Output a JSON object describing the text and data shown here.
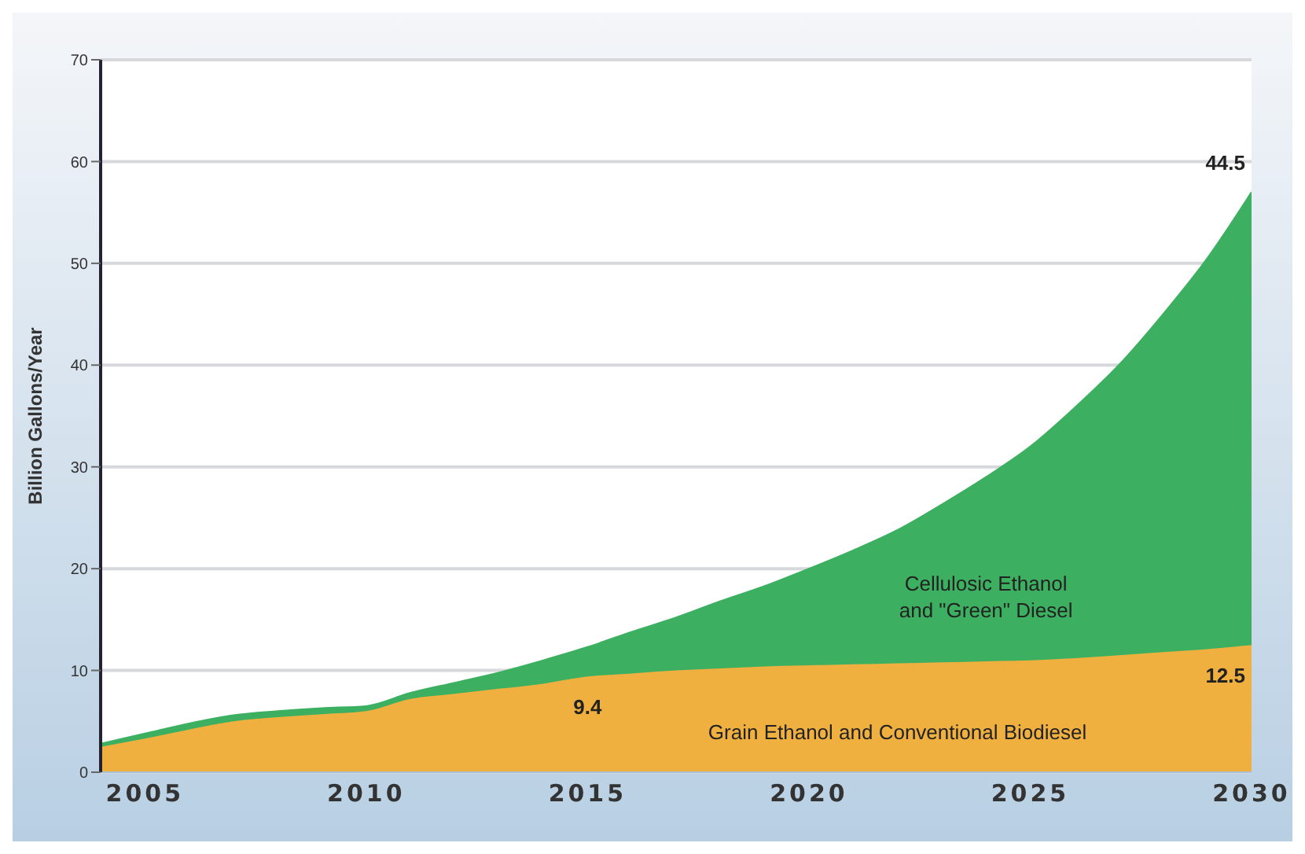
{
  "chart_data": {
    "type": "area",
    "stacked": true,
    "ylabel": "Billion Gallons/Year",
    "x": [
      2004,
      2005,
      2006,
      2007,
      2008,
      2009,
      2010,
      2011,
      2012,
      2013,
      2014,
      2015,
      2016,
      2017,
      2018,
      2019,
      2020,
      2021,
      2022,
      2023,
      2024,
      2025,
      2026,
      2027,
      2028,
      2029,
      2030
    ],
    "series": [
      {
        "name": "Grain Ethanol and Conventional Biodiesel",
        "color": "#f0b040",
        "values": [
          2.5,
          3.3,
          4.2,
          5.0,
          5.4,
          5.7,
          6.0,
          7.2,
          7.7,
          8.2,
          8.7,
          9.4,
          9.7,
          10.0,
          10.2,
          10.4,
          10.5,
          10.6,
          10.7,
          10.8,
          10.9,
          11.0,
          11.2,
          11.5,
          11.8,
          12.1,
          12.5
        ],
        "value_labels": [
          null,
          null,
          null,
          null,
          null,
          null,
          null,
          null,
          null,
          null,
          null,
          "9.4",
          null,
          null,
          null,
          null,
          null,
          null,
          null,
          null,
          null,
          null,
          null,
          null,
          null,
          null,
          "12.5"
        ]
      },
      {
        "name": "Cellulosic Ethanol and \"Green\" Diesel",
        "color": "#3cb060",
        "values": [
          0.3,
          0.5,
          0.6,
          0.6,
          0.6,
          0.6,
          0.5,
          0.6,
          1.1,
          1.6,
          2.3,
          2.9,
          4.1,
          5.2,
          6.6,
          7.9,
          9.5,
          11.2,
          13.1,
          15.5,
          18.1,
          21.0,
          24.6,
          28.5,
          33.2,
          38.4,
          44.5
        ],
        "value_labels": [
          null,
          null,
          null,
          null,
          null,
          null,
          null,
          null,
          null,
          null,
          null,
          null,
          null,
          null,
          null,
          null,
          null,
          null,
          null,
          null,
          null,
          null,
          null,
          null,
          null,
          null,
          "44.5"
        ]
      }
    ],
    "xlim": [
      2004,
      2030
    ],
    "xticks": [
      2005,
      2010,
      2015,
      2020,
      2025,
      2030
    ],
    "ylim": [
      0,
      70
    ],
    "yticks": [
      0,
      10,
      20,
      30,
      40,
      50,
      60,
      70
    ],
    "grid": "y"
  }
}
